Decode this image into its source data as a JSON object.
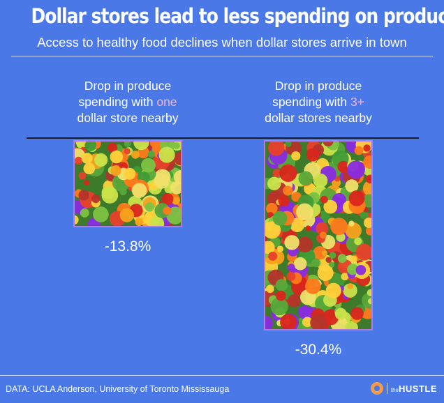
{
  "header": {
    "title": "Dollar stores lead to less spending on produce",
    "subtitle": "Access to healthy food declines when dollar stores arrive in town"
  },
  "columns": [
    {
      "label_line1": "Drop in produce",
      "label_line2_pre": "spending with ",
      "label_line2_hl": "one",
      "label_line3": "dollar store nearby"
    },
    {
      "label_line1": "Drop in produce",
      "label_line2_pre": "spending with ",
      "label_line2_hl": "3+",
      "label_line3": "dollar stores nearby"
    }
  ],
  "chart_data": {
    "type": "bar",
    "categories": [
      "one dollar store nearby",
      "3+ dollar stores nearby"
    ],
    "values": [
      -13.8,
      -30.4
    ],
    "value_labels": [
      "-13.8%",
      "-30.4%"
    ],
    "ylim": [
      -30.4,
      0
    ],
    "grid": false
  },
  "footer": {
    "source": "DATA: UCLA Anderson, University of Toronto Mississauga",
    "brand_small": "the",
    "brand_big": "HUSTLE"
  },
  "colors": {
    "background": "#4a78e6",
    "highlight": "#f4b6d8",
    "baseline": "#1a1a1a"
  }
}
